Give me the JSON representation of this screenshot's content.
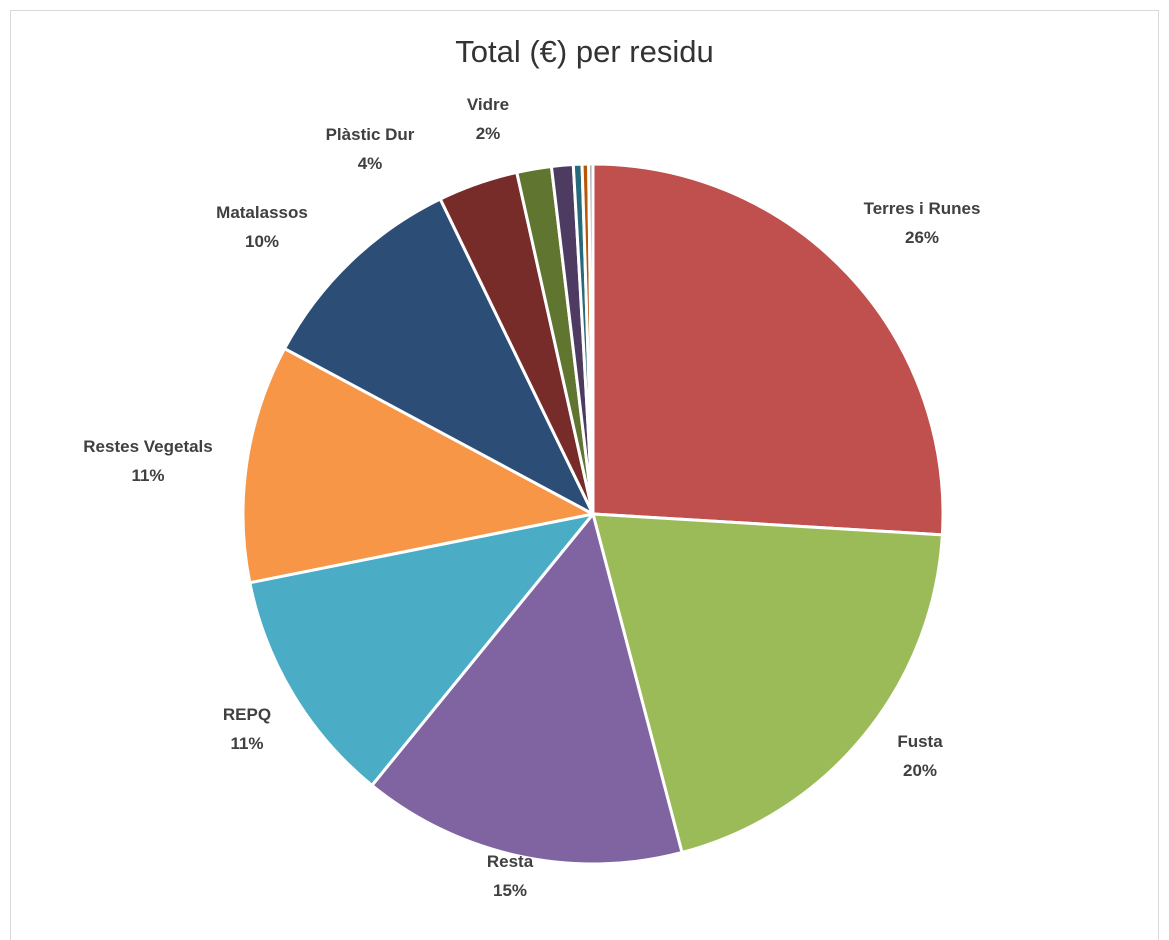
{
  "chart_data": {
    "type": "pie",
    "title": "Total (€) per residu",
    "start_angle": "12 o'clock, clockwise",
    "slices": [
      {
        "name": "Terres i Runes",
        "value": 26,
        "pct_label": "26%",
        "color": "#c0504d",
        "show_label": true
      },
      {
        "name": "Fusta",
        "value": 20,
        "pct_label": "20%",
        "color": "#9bbb59",
        "show_label": true
      },
      {
        "name": "Resta",
        "value": 15,
        "pct_label": "15%",
        "color": "#8064a2",
        "show_label": true
      },
      {
        "name": "REPQ",
        "value": 11,
        "pct_label": "11%",
        "color": "#4bacc6",
        "show_label": true
      },
      {
        "name": "Restes Vegetals",
        "value": 11,
        "pct_label": "11%",
        "color": "#f79646",
        "show_label": true
      },
      {
        "name": "Matalassos",
        "value": 10,
        "pct_label": "10%",
        "color": "#2c4d75",
        "show_label": true
      },
      {
        "name": "Plàstic Dur",
        "value": 3.7,
        "pct_label": "4%",
        "color": "#772c2a",
        "show_label": true
      },
      {
        "name": "Vidre",
        "value": 1.6,
        "pct_label": "2%",
        "color": "#5f7530",
        "show_label": true
      },
      {
        "name": "",
        "value": 1.0,
        "pct_label": "",
        "color": "#4d3b62",
        "show_label": false
      },
      {
        "name": "",
        "value": 0.4,
        "pct_label": "",
        "color": "#276a7c",
        "show_label": false
      },
      {
        "name": "",
        "value": 0.3,
        "pct_label": "",
        "color": "#b65708",
        "show_label": false
      },
      {
        "name": "",
        "value": 0.2,
        "pct_label": "",
        "color": "#a5a5a5",
        "show_label": false
      }
    ]
  }
}
